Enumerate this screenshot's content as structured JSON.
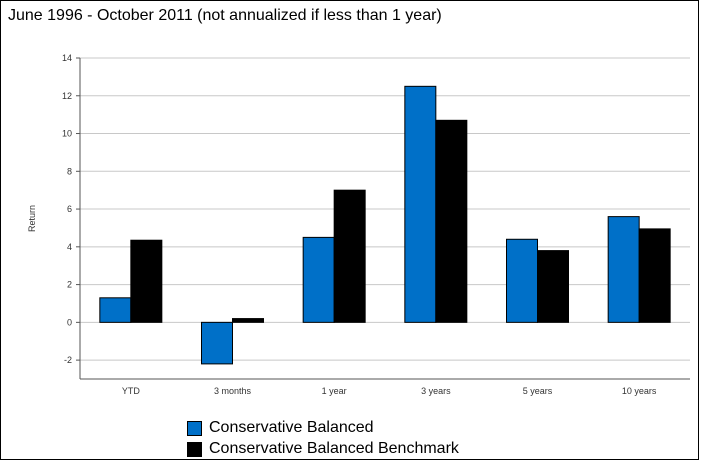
{
  "chart_data": {
    "type": "bar",
    "title": "June 1996 - October 2011 (not annualized if less than 1 year)",
    "xlabel": "",
    "ylabel": "Return",
    "ylim": [
      -3,
      14
    ],
    "yticks": [
      -2,
      0,
      2,
      4,
      6,
      8,
      10,
      12,
      14
    ],
    "grid": true,
    "legend": "bottom",
    "categories": [
      "YTD",
      "3 months",
      "1 year",
      "3 years",
      "5 years",
      "10 years"
    ],
    "series": [
      {
        "name": "Conservative Balanced",
        "color": "#0070C8",
        "values": [
          1.3,
          -2.2,
          4.5,
          12.5,
          4.4,
          5.6
        ]
      },
      {
        "name": "Conservative Balanced Benchmark",
        "color": "#000000",
        "values": [
          4.35,
          0.2,
          7.0,
          10.7,
          3.8,
          4.95
        ]
      }
    ]
  }
}
